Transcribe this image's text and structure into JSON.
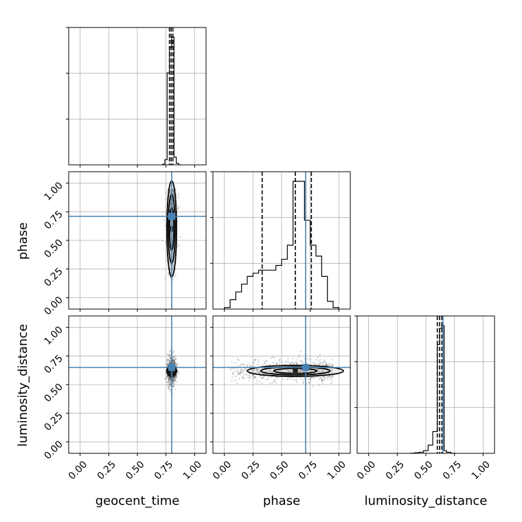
{
  "chart_data": {
    "type": "corner",
    "parameters": [
      "geocent_time",
      "phase",
      "luminosity_distance"
    ],
    "tick_values": [
      0.0,
      0.25,
      0.5,
      0.75,
      1.0
    ],
    "tick_labels": [
      "0.00",
      "0.25",
      "0.50",
      "0.75",
      "1.00"
    ],
    "range": [
      -0.1,
      1.1
    ],
    "grid": true,
    "truth_color": "#4682b4",
    "truths": {
      "geocent_time": 0.8,
      "phase": 0.71,
      "luminosity_distance": 0.65
    },
    "histograms": {
      "geocent_time": {
        "bin_edges": [
          0.72,
          0.74,
          0.76,
          0.78,
          0.8,
          0.82,
          0.84,
          0.86,
          0.88
        ],
        "counts": [
          1,
          10,
          180,
          230,
          250,
          15,
          3,
          0
        ],
        "quantiles": [
          0.78,
          0.795,
          0.81
        ]
      },
      "phase": {
        "bin_edges": [
          0.0,
          0.05,
          0.1,
          0.15,
          0.2,
          0.25,
          0.3,
          0.35,
          0.4,
          0.45,
          0.5,
          0.55,
          0.6,
          0.65,
          0.7,
          0.75,
          0.8,
          0.85,
          0.9,
          0.95,
          1.0
        ],
        "counts": [
          5,
          30,
          55,
          80,
          105,
          115,
          125,
          125,
          125,
          140,
          160,
          205,
          410,
          410,
          285,
          205,
          170,
          105,
          25,
          5
        ],
        "quantiles": [
          0.33,
          0.62,
          0.76
        ]
      },
      "luminosity_distance": {
        "bin_edges": [
          0.36,
          0.4,
          0.44,
          0.48,
          0.52,
          0.56,
          0.6,
          0.62,
          0.64,
          0.66,
          0.68,
          0.72,
          0.76
        ],
        "counts": [
          0,
          1,
          2,
          5,
          15,
          40,
          200,
          230,
          235,
          5,
          2,
          0
        ],
        "quantiles": [
          0.6,
          0.62,
          0.64
        ]
      }
    },
    "scatter_2d": [
      {
        "x": "geocent_time",
        "y": "phase",
        "x_center": 0.8,
        "x_spread": 0.02,
        "y_range": [
          0.15,
          0.95
        ]
      },
      {
        "x": "geocent_time",
        "y": "luminosity_distance",
        "x_center": 0.8,
        "x_spread": 0.02,
        "y_center": 0.62,
        "y_spread": 0.06
      },
      {
        "x": "phase",
        "y": "luminosity_distance",
        "x_range": [
          0.05,
          0.95
        ],
        "y_center": 0.62,
        "y_spread": 0.05
      }
    ]
  }
}
